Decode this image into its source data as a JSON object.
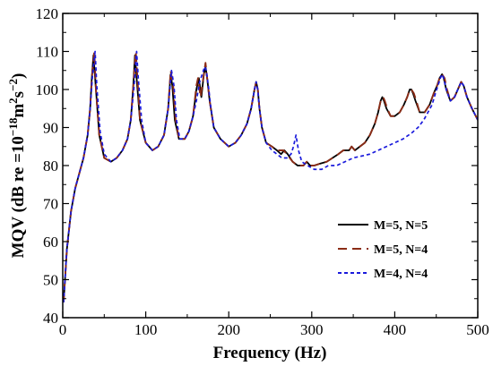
{
  "chart_data": {
    "type": "line",
    "title": "",
    "xlabel": "Frequency (Hz)",
    "ylabel_parts": [
      "MQV (dB re =10",
      "−18",
      "m",
      "2",
      "s",
      "−2",
      ")"
    ],
    "xlim": [
      0,
      500
    ],
    "ylim": [
      40,
      120
    ],
    "xticks": [
      0,
      100,
      200,
      300,
      400,
      500
    ],
    "yticks": [
      40,
      50,
      60,
      70,
      80,
      90,
      100,
      110,
      120
    ],
    "grid": false,
    "legend_position": "bottom-right",
    "series": [
      {
        "name": "M=5, N=5",
        "color": "#000000",
        "dash": "solid",
        "x": [
          1,
          5,
          10,
          15,
          20,
          25,
          30,
          33,
          35,
          37,
          40,
          44,
          50,
          58,
          65,
          72,
          78,
          82,
          85,
          87,
          89,
          93,
          100,
          108,
          115,
          122,
          127,
          130,
          132,
          135,
          140,
          147,
          152,
          157,
          161,
          164,
          167,
          170,
          172,
          174,
          177,
          182,
          190,
          200,
          208,
          215,
          222,
          227,
          231,
          233,
          235,
          237,
          240,
          245,
          252,
          258,
          263,
          267,
          271,
          277,
          283,
          290,
          294,
          298,
          303,
          310,
          318,
          325,
          332,
          338,
          342,
          345,
          348,
          352,
          358,
          364,
          370,
          376,
          380,
          383,
          385,
          387,
          390,
          395,
          400,
          406,
          411,
          415,
          418,
          420,
          422,
          425,
          430,
          436,
          442,
          447,
          451,
          454,
          457,
          459,
          462,
          467,
          472,
          476,
          480,
          483,
          487,
          493,
          500
        ],
        "y": [
          44,
          58,
          68,
          74,
          78,
          82,
          88,
          95,
          103,
          109,
          100,
          88,
          82,
          81,
          82,
          84,
          87,
          92,
          101,
          109,
          103,
          92,
          86,
          84,
          85,
          88,
          95,
          104,
          101,
          92,
          87,
          87,
          89,
          93,
          100,
          103,
          98,
          104,
          106,
          103,
          97,
          90,
          87,
          85,
          86,
          88,
          91,
          95,
          100,
          102,
          100,
          95,
          90,
          86,
          85,
          84,
          83,
          84,
          83,
          81,
          80,
          80,
          81,
          80,
          80,
          80.5,
          81,
          82,
          83,
          84,
          84,
          84,
          85,
          84,
          85,
          86,
          88,
          91,
          94,
          97,
          98,
          97,
          95,
          93,
          93,
          94,
          96,
          98,
          100,
          100,
          99,
          97,
          94,
          94,
          96,
          99,
          101,
          103,
          104,
          103,
          100,
          97,
          98,
          100,
          102,
          101,
          98,
          95,
          92
        ]
      },
      {
        "name": "M=5, N=4",
        "color": "#8b2c16",
        "dash": "10,6",
        "x": [
          1,
          5,
          10,
          15,
          20,
          25,
          30,
          33,
          35,
          38,
          40,
          44,
          50,
          58,
          65,
          72,
          78,
          82,
          85,
          88,
          90,
          93,
          100,
          108,
          115,
          122,
          127,
          130,
          133,
          136,
          140,
          147,
          152,
          157,
          161,
          163,
          166,
          170,
          172,
          174,
          177,
          182,
          190,
          200,
          208,
          215,
          222,
          227,
          231,
          233,
          235,
          237,
          240,
          245,
          252,
          258,
          263,
          266,
          270,
          277,
          283,
          290,
          294,
          298,
          303,
          310,
          318,
          325,
          332,
          338,
          342,
          345,
          348,
          352,
          358,
          364,
          370,
          376,
          380,
          383,
          386,
          388,
          391,
          395,
          400,
          406,
          411,
          415,
          418,
          420,
          423,
          426,
          430,
          436,
          442,
          447,
          451,
          454,
          457,
          460,
          463,
          467,
          472,
          476,
          480,
          483,
          487,
          493,
          500
        ],
        "y": [
          44,
          58,
          68,
          74,
          78,
          82,
          88,
          95,
          103,
          110,
          100,
          88,
          82,
          81,
          82,
          84,
          87,
          92,
          101,
          110,
          103,
          92,
          86,
          84,
          85,
          88,
          95,
          105,
          101,
          92,
          87,
          87,
          89,
          93,
          101,
          103,
          98,
          104,
          107,
          103,
          97,
          90,
          87,
          85,
          86,
          88,
          91,
          95,
          100,
          102,
          100,
          95,
          90,
          86,
          85,
          84,
          84,
          84,
          83,
          81,
          80,
          80,
          81,
          80,
          80,
          80.5,
          81,
          82,
          83,
          84,
          84,
          84,
          85,
          84,
          85,
          86,
          88,
          91,
          94,
          97,
          98,
          97,
          95,
          93,
          93,
          94,
          96,
          98,
          100,
          100,
          99,
          97,
          94,
          94,
          96,
          99,
          101,
          103,
          104,
          103,
          100,
          97,
          98,
          100,
          102,
          101,
          98,
          95,
          92
        ]
      },
      {
        "name": "M=4, N=4",
        "color": "#1a1adc",
        "dash": "4,3",
        "x": [
          1,
          5,
          10,
          15,
          20,
          25,
          30,
          33,
          36,
          39,
          41,
          45,
          50,
          58,
          65,
          72,
          78,
          82,
          86,
          89,
          91,
          95,
          100,
          108,
          115,
          122,
          127,
          131,
          134,
          137,
          141,
          147,
          152,
          157,
          161,
          165,
          168,
          171,
          173,
          176,
          178,
          182,
          190,
          200,
          208,
          215,
          222,
          227,
          231,
          233,
          235,
          237,
          240,
          245,
          252,
          258,
          264,
          270,
          275,
          278,
          281,
          284,
          288,
          295,
          303,
          312,
          320,
          330,
          340,
          350,
          360,
          370,
          380,
          390,
          400,
          410,
          420,
          428,
          435,
          440,
          445,
          449,
          452,
          455,
          457,
          459,
          462,
          467,
          472,
          476,
          480,
          483,
          487,
          493,
          500
        ],
        "y": [
          44,
          58,
          68,
          74,
          78,
          82,
          88,
          95,
          104,
          110,
          101,
          89,
          83,
          81,
          82,
          84,
          87,
          92,
          101,
          110,
          103,
          92,
          86,
          84,
          85,
          88,
          95,
          105,
          101,
          92,
          87,
          87,
          89,
          93,
          97,
          102,
          104,
          106,
          105,
          100,
          96,
          90,
          87,
          85,
          86,
          88,
          91,
          95,
          100,
          102,
          100,
          95,
          90,
          86,
          84,
          83,
          82,
          82,
          83,
          85,
          88,
          84,
          81,
          80,
          79,
          79,
          80,
          80,
          81,
          82,
          82.5,
          83,
          84,
          85,
          86,
          87,
          88.5,
          90,
          92,
          94,
          96,
          99,
          101,
          103,
          104,
          103,
          100,
          97,
          98,
          100,
          102,
          101,
          98,
          95,
          92
        ]
      }
    ]
  }
}
